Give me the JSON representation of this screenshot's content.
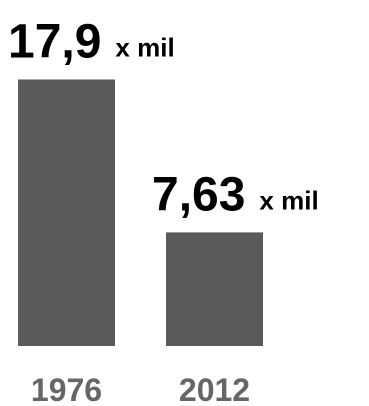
{
  "chart_data": {
    "type": "bar",
    "categories": [
      "1976",
      "2012"
    ],
    "values": [
      17.9,
      7.63
    ],
    "data_labels": [
      "17,9",
      "7,63"
    ],
    "unit_label": "x mil",
    "ylim": [
      0,
      18
    ],
    "grid": false,
    "colors": {
      "bar": "#5a5a5a",
      "value_text": "#000000",
      "tick_text": "#666666"
    }
  }
}
